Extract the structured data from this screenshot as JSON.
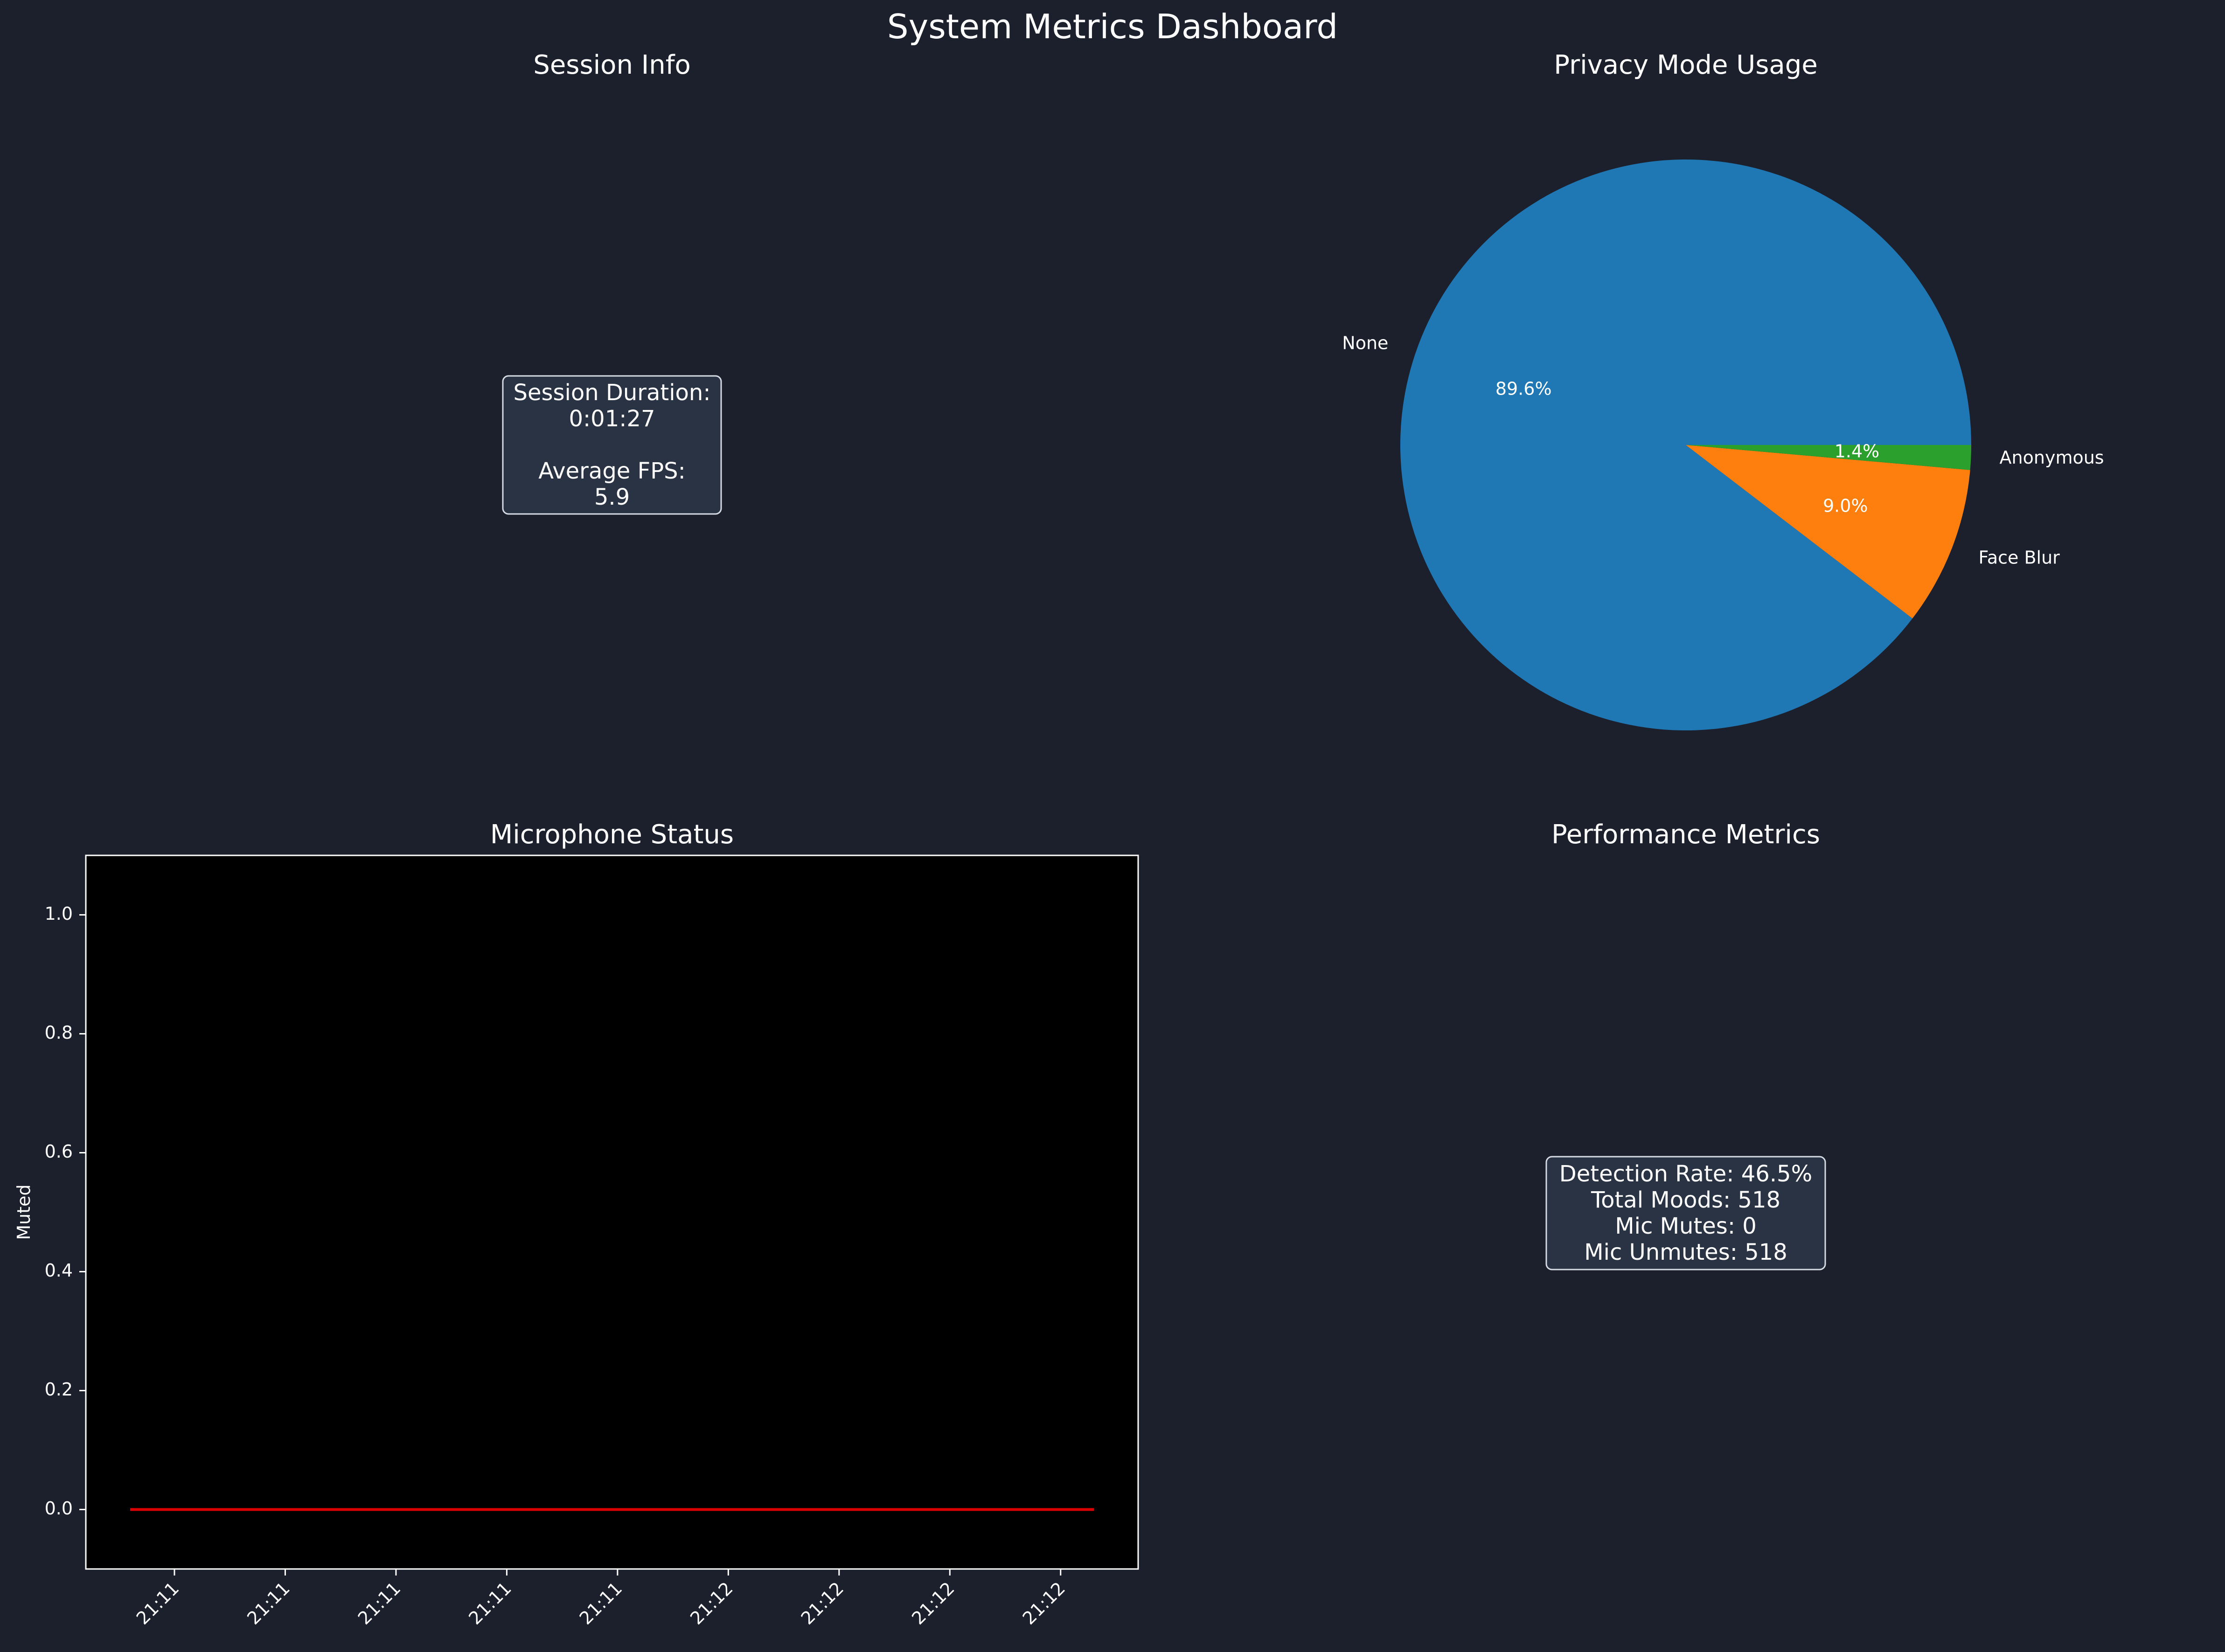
{
  "dashboard": {
    "title": "System Metrics Dashboard"
  },
  "colors": {
    "background": "#1b202c",
    "text": "#ffffff",
    "box_fill": "#2a3344",
    "plot_bg": "#000000",
    "line": "#dd0000"
  },
  "chart_data": [
    {
      "type": "table",
      "title": "Session Info",
      "lines": [
        "Session Duration:",
        "0:01:27",
        "",
        "Average FPS:",
        "5.9"
      ]
    },
    {
      "type": "pie",
      "title": "Privacy Mode Usage",
      "slices": [
        {
          "label": "None",
          "value": 89.6,
          "pct_label": "89.6%",
          "color": "#1f77b4"
        },
        {
          "label": "Face Blur",
          "value": 9.0,
          "pct_label": "9.0%",
          "color": "#ff7f0e"
        },
        {
          "label": "Anonymous",
          "value": 1.4,
          "pct_label": "1.4%",
          "color": "#2ca02c"
        }
      ]
    },
    {
      "type": "line",
      "title": "Microphone Status",
      "xlabel": "",
      "ylabel": "Muted",
      "ylim": [
        -0.1,
        1.1
      ],
      "yticks": [
        0.0,
        0.2,
        0.4,
        0.6,
        0.8,
        1.0
      ],
      "ytick_labels": [
        "0.0",
        "0.2",
        "0.4",
        "0.6",
        "0.8",
        "1.0"
      ],
      "x": [
        "21:11:02",
        "21:12:29"
      ],
      "xlim": [
        "21:10:58",
        "21:12:33"
      ],
      "xticks": [
        "21:11:06",
        "21:11:16",
        "21:11:26",
        "21:11:36",
        "21:11:46",
        "21:11:56",
        "21:12:06",
        "21:12:16",
        "21:12:26"
      ],
      "xtick_labels": [
        "21:11",
        "21:11",
        "21:11",
        "21:11",
        "21:11",
        "21:12",
        "21:12",
        "21:12",
        "21:12"
      ],
      "series": [
        {
          "values": [
            0,
            0
          ],
          "color": "#dd0000"
        }
      ],
      "grid": false
    },
    {
      "type": "table",
      "title": "Performance Metrics",
      "lines": [
        "Detection Rate: 46.5%",
        "Total Moods: 518",
        "Mic Mutes: 0",
        "Mic Unmutes: 518"
      ]
    }
  ]
}
